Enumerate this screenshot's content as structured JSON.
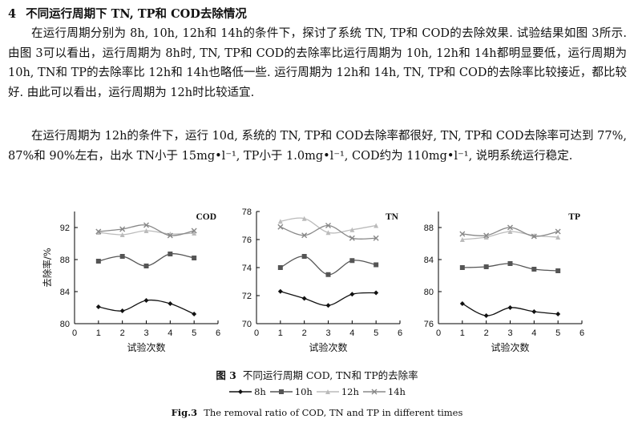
{
  "section": {
    "number": "4",
    "title": "不同运行周期下 TN, TP和 COD去除情况"
  },
  "paragraphs": [
    "在运行周期分别为 8h, 10h, 12h和 14h的条件下，探讨了系统 TN, TP和 COD的去除效果. 试验结果如图 3所示. 由图 3可以看出，运行周期为 8h时, TN, TP和 COD的去除率比运行周期为 10h, 12h和 14h都明显要低，运行周期为 10h, TN和 TP的去除率比 12h和 14h也略低一些. 运行周期为 12h和 14h, TN, TP和 COD的去除率比较接近，都比较好. 由此可以看出，运行周期为 12h时比较适宜.",
    "在运行周期为 12h的条件下，运行 10d, 系统的 TN, TP和 COD去除率都很好, TN, TP和 COD去除率可达到 77%, 87%和 90%左右，出水 TN小于 15mg•l⁻¹, TP小于 1.0mg•l⁻¹, COD约为 110mg•l⁻¹, 说明系统运行稳定."
  ],
  "figure": {
    "caption_label_zh": "图 3",
    "caption_zh": "不同运行周期 COD, TN和 TP的去除率",
    "caption_label_en": "Fig.3",
    "caption_en": "The removal ratio of COD, TN and TP in different times",
    "legend": [
      {
        "name": "8h",
        "color": "#111111",
        "marker": "diamond"
      },
      {
        "name": "10h",
        "color": "#555555",
        "marker": "square"
      },
      {
        "name": "12h",
        "color": "#bbbbbb",
        "marker": "triangle"
      },
      {
        "name": "14h",
        "color": "#888888",
        "marker": "x"
      }
    ]
  },
  "chart_data": [
    {
      "type": "line",
      "title": "COD",
      "xlabel": "试验次数",
      "ylabel": "去除率/%",
      "x": [
        1,
        2,
        3,
        4,
        5
      ],
      "xlim": [
        0,
        6
      ],
      "xticks": [
        "0",
        "1",
        "2",
        "3",
        "4",
        "5",
        "6"
      ],
      "ylim": [
        80,
        94
      ],
      "yticks": [
        "80",
        "84",
        "88",
        "92"
      ],
      "series": [
        {
          "name": "8h",
          "values": [
            82.1,
            81.6,
            82.9,
            82.5,
            81.2
          ]
        },
        {
          "name": "10h",
          "values": [
            87.8,
            88.4,
            87.2,
            88.7,
            88.2
          ]
        },
        {
          "name": "12h",
          "values": [
            91.4,
            91.1,
            91.6,
            91.2,
            91.3
          ]
        },
        {
          "name": "14h",
          "values": [
            91.5,
            91.8,
            92.3,
            91.0,
            91.6
          ]
        }
      ]
    },
    {
      "type": "line",
      "title": "TN",
      "xlabel": "试验次数",
      "ylabel": "",
      "x": [
        1,
        2,
        3,
        4,
        5
      ],
      "xlim": [
        0,
        6
      ],
      "xticks": [
        "0",
        "1",
        "2",
        "3",
        "4",
        "5",
        "6"
      ],
      "ylim": [
        70,
        78
      ],
      "yticks": [
        "70",
        "72",
        "74",
        "76",
        "78"
      ],
      "series": [
        {
          "name": "8h",
          "values": [
            72.3,
            71.8,
            71.3,
            72.1,
            72.2
          ]
        },
        {
          "name": "10h",
          "values": [
            74.0,
            74.8,
            73.5,
            74.5,
            74.2
          ]
        },
        {
          "name": "12h",
          "values": [
            77.3,
            77.5,
            76.5,
            76.7,
            77.0
          ]
        },
        {
          "name": "14h",
          "values": [
            76.9,
            76.3,
            77.0,
            76.1,
            76.1
          ]
        }
      ]
    },
    {
      "type": "line",
      "title": "TP",
      "xlabel": "试验次数",
      "ylabel": "",
      "x": [
        1,
        2,
        3,
        4,
        5
      ],
      "xlim": [
        0,
        6
      ],
      "xticks": [
        "0",
        "1",
        "2",
        "3",
        "4",
        "5",
        "6"
      ],
      "ylim": [
        76,
        90
      ],
      "yticks": [
        "76",
        "80",
        "84",
        "88"
      ],
      "series": [
        {
          "name": "8h",
          "values": [
            78.5,
            77.0,
            78.0,
            77.5,
            77.2
          ]
        },
        {
          "name": "10h",
          "values": [
            83.0,
            83.1,
            83.5,
            82.8,
            82.6
          ]
        },
        {
          "name": "12h",
          "values": [
            86.5,
            86.8,
            87.5,
            87.0,
            86.8
          ]
        },
        {
          "name": "14h",
          "values": [
            87.2,
            87.0,
            88.0,
            86.9,
            87.5
          ]
        }
      ]
    }
  ]
}
